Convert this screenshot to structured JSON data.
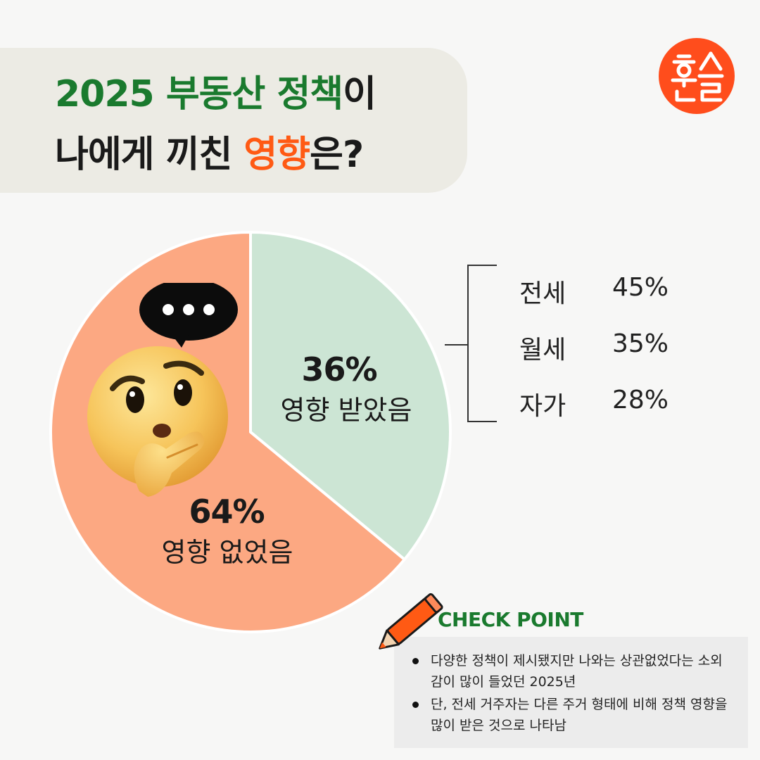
{
  "title": {
    "line1_green": "2025 부동산 정책",
    "line1_dark": "이",
    "line2_dark": "나에게 끼친 ",
    "line2_orange": "영향",
    "line2_end": "은?"
  },
  "colors": {
    "green": "#1a7a2e",
    "orange": "#ff5a14",
    "slice_affected": "#cce5d4",
    "slice_not_affected": "#fca882"
  },
  "chart_data": {
    "type": "pie",
    "slices": [
      {
        "value": 36,
        "label_pct": "36%",
        "label": "영향 받았음",
        "color": "#cce5d4"
      },
      {
        "value": 64,
        "label_pct": "64%",
        "label": "영향 없었음",
        "color": "#fca882"
      }
    ],
    "breakdown": [
      {
        "label": "전세",
        "value": "45%"
      },
      {
        "label": "월세",
        "value": "35%"
      },
      {
        "label": "자가",
        "value": "28%"
      }
    ]
  },
  "check_point": {
    "title": "CHECK POINT",
    "bullets": [
      "다양한 정책이 제시됐지만 나와는 상관없었다는 소외감이 많이 들었던 2025년",
      "단, 전세 거주자는 다른 주거 형태에 비해 정책 영향을 많이 받은 것으로 나타남"
    ]
  },
  "logo": {
    "icon": "brand-logo-icon"
  },
  "emoji": {
    "icon": "thinking-face-icon"
  }
}
